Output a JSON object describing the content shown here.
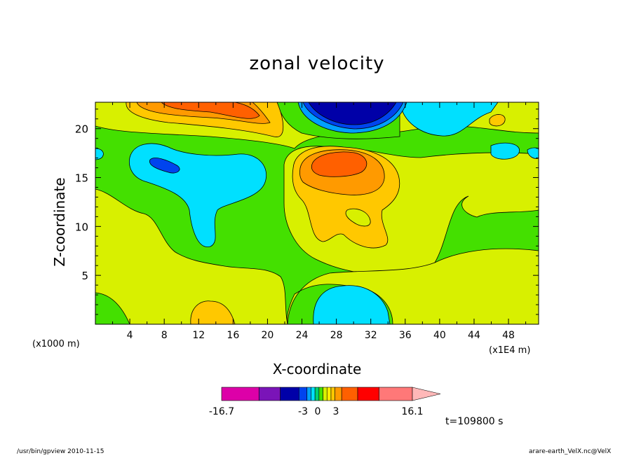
{
  "chart_data": {
    "type": "heatmap",
    "title": "zonal velocity",
    "xlabel": "X-coordinate",
    "ylabel": "Z-coordinate",
    "x_unit_left": "(x1000 m)",
    "x_unit_right": "(x1E4 m)",
    "x_ticks": [
      "4",
      "8",
      "12",
      "16",
      "20",
      "24",
      "28",
      "32",
      "36",
      "40",
      "44",
      "48"
    ],
    "y_ticks": [
      "5",
      "10",
      "15",
      "20"
    ],
    "xlim": [
      0,
      51.5
    ],
    "ylim": [
      0,
      22.7
    ],
    "colorbar": {
      "labels": [
        "-16.7",
        "-3",
        "0",
        "3",
        "16.1"
      ],
      "colors": [
        "#dd00a8",
        "#7a14b8",
        "#0000a8",
        "#0044ee",
        "#00a0ff",
        "#00e0ff",
        "#00d070",
        "#44e000",
        "#d8f000",
        "#ffee00",
        "#ffc800",
        "#ff9a00",
        "#ff6000",
        "#ff0000",
        "#ff7878",
        "#ffb8b8"
      ],
      "range": [
        -16.7,
        16.1
      ]
    },
    "annotation_time": "t=109800 s"
  },
  "footer": {
    "left": "/usr/bin/gpview 2010-11-15",
    "right": "arare-earth_VelX.nc@VelX"
  }
}
